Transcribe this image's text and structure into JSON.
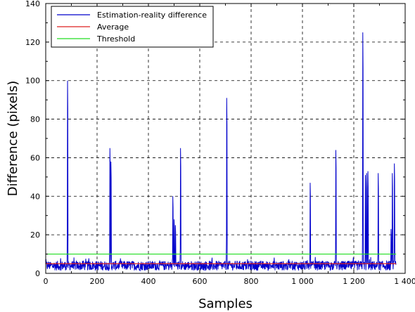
{
  "chart_data": {
    "type": "line",
    "title": "",
    "xlabel": "Samples",
    "ylabel": "Difference (pixels)",
    "xlim": [
      0,
      1400
    ],
    "ylim": [
      0,
      140
    ],
    "grid": true,
    "grid_style": "dashed",
    "legend_placement": "top-left",
    "x_ticks": [
      0,
      200,
      400,
      600,
      800,
      1000,
      1200,
      1400
    ],
    "x_tick_labels": [
      "0",
      "200",
      "400",
      "600",
      "800",
      "1 000",
      "1 200",
      "1 400"
    ],
    "y_ticks": [
      0,
      20,
      40,
      60,
      80,
      100,
      120,
      140
    ],
    "y_tick_labels": [
      "0",
      "20",
      "40",
      "60",
      "80",
      "100",
      "120",
      "140"
    ],
    "series": [
      {
        "name": "Estimation-reality difference",
        "color": "#0000cc",
        "n_samples": 1365,
        "baseline_typical": 4,
        "peaks": [
          {
            "x": 85,
            "y": 100
          },
          {
            "x": 250,
            "y": 65
          },
          {
            "x": 254,
            "y": 58
          },
          {
            "x": 495,
            "y": 40
          },
          {
            "x": 500,
            "y": 28
          },
          {
            "x": 505,
            "y": 25
          },
          {
            "x": 525,
            "y": 65
          },
          {
            "x": 705,
            "y": 91
          },
          {
            "x": 1030,
            "y": 47
          },
          {
            "x": 1130,
            "y": 64
          },
          {
            "x": 1235,
            "y": 125
          },
          {
            "x": 1245,
            "y": 51
          },
          {
            "x": 1250,
            "y": 52
          },
          {
            "x": 1255,
            "y": 53
          },
          {
            "x": 1295,
            "y": 52
          },
          {
            "x": 1345,
            "y": 23
          },
          {
            "x": 1350,
            "y": 52
          },
          {
            "x": 1358,
            "y": 57
          }
        ]
      },
      {
        "name": "Average",
        "color": "#dd2222",
        "values": [
          [
            0,
            5
          ],
          [
            1365,
            5
          ]
        ]
      },
      {
        "name": "Threshold",
        "color": "#22dd22",
        "values": [
          [
            0,
            10
          ],
          [
            1365,
            10
          ]
        ]
      }
    ]
  }
}
